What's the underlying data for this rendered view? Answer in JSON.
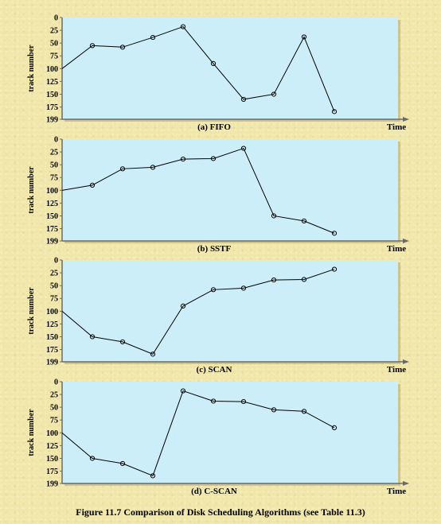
{
  "figure": {
    "caption": "Figure 11.7   Comparison of Disk Scheduling Algorithms (see Table 11.3)"
  },
  "colors": {
    "plot_background": "#cceef8",
    "axis": "#6b6b6b",
    "line": "#000000",
    "page_background": "#f0e6a8"
  },
  "chart_data": [
    {
      "type": "line",
      "title": "(a) FIFO",
      "xlabel": "Time",
      "ylabel": "track number",
      "yticks": [
        "0",
        "25",
        "50",
        "75",
        "100",
        "125",
        "150",
        "175",
        "199"
      ],
      "ylim": [
        0,
        199
      ],
      "y_inverted": true,
      "grid": false,
      "series": [
        {
          "x": [
            0,
            1,
            2,
            3,
            4,
            5,
            6,
            7,
            8,
            9
          ],
          "values": [
            100,
            55,
            58,
            39,
            18,
            90,
            160,
            150,
            38,
            184
          ]
        }
      ]
    },
    {
      "type": "line",
      "title": "(b) SSTF",
      "xlabel": "Time",
      "ylabel": "track number",
      "yticks": [
        "0",
        "25",
        "50",
        "75",
        "100",
        "125",
        "150",
        "175",
        "199"
      ],
      "ylim": [
        0,
        199
      ],
      "y_inverted": true,
      "grid": false,
      "series": [
        {
          "x": [
            0,
            1,
            2,
            3,
            4,
            5,
            6,
            7,
            8,
            9
          ],
          "values": [
            100,
            90,
            58,
            55,
            39,
            38,
            18,
            150,
            160,
            184
          ]
        }
      ]
    },
    {
      "type": "line",
      "title": "(c) SCAN",
      "xlabel": "Time",
      "ylabel": "track number",
      "yticks": [
        "0",
        "25",
        "50",
        "75",
        "100",
        "125",
        "150",
        "175",
        "199"
      ],
      "ylim": [
        0,
        199
      ],
      "y_inverted": true,
      "grid": false,
      "series": [
        {
          "x": [
            0,
            1,
            2,
            3,
            4,
            5,
            6,
            7,
            8,
            9
          ],
          "values": [
            100,
            150,
            160,
            184,
            90,
            58,
            55,
            39,
            38,
            18
          ]
        }
      ]
    },
    {
      "type": "line",
      "title": "(d) C-SCAN",
      "xlabel": "Time",
      "ylabel": "track number",
      "yticks": [
        "0",
        "25",
        "50",
        "75",
        "100",
        "125",
        "150",
        "175",
        "199"
      ],
      "ylim": [
        0,
        199
      ],
      "y_inverted": true,
      "grid": false,
      "series": [
        {
          "x": [
            0,
            1,
            2,
            3,
            4,
            5,
            6,
            7,
            8,
            9
          ],
          "values": [
            100,
            150,
            160,
            184,
            18,
            38,
            39,
            55,
            58,
            90
          ]
        }
      ]
    }
  ]
}
